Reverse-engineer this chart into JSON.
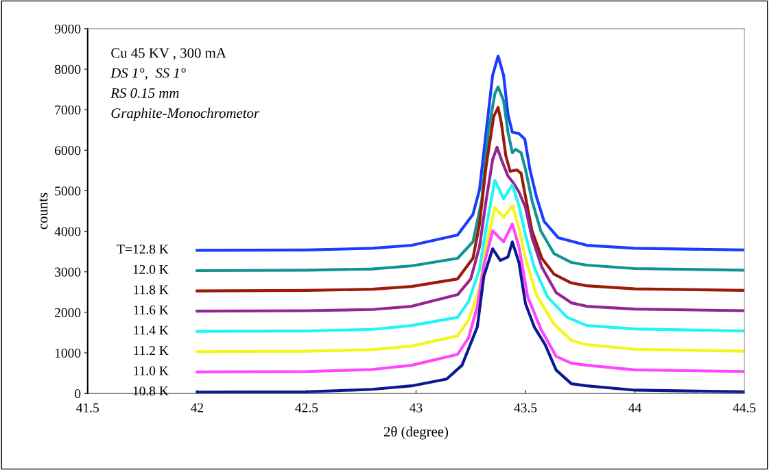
{
  "chart_data": {
    "type": "line",
    "xlabel": "2θ (degree)",
    "ylabel": "counts",
    "annotations": [
      "Cu 45 KV , 300 mA",
      "DS 1°,  SS 1°",
      "RS 0.15 mm",
      "Graphite-Monochrometor"
    ],
    "xlim": [
      41.5,
      44.5
    ],
    "xticks": [
      41.5,
      42,
      42.5,
      43,
      43.5,
      44,
      44.5
    ],
    "ylim": [
      0,
      9000
    ],
    "yticks": [
      0,
      1000,
      2000,
      3000,
      4000,
      5000,
      6000,
      7000,
      8000,
      9000
    ],
    "grid": false,
    "legend": false,
    "marker": "none",
    "line_style": "solid",
    "series": [
      {
        "name": "T=12.8 K",
        "color": "#1a3cff",
        "x": [
          42,
          42.5,
          42.8,
          42.98,
          43.19,
          43.26,
          43.29,
          43.32,
          43.35,
          43.375,
          43.4,
          43.42,
          43.44,
          43.47,
          43.497,
          43.52,
          43.55,
          43.585,
          43.65,
          43.78,
          44.0,
          44.5
        ],
        "values": [
          3530,
          3540,
          3580,
          3655,
          3908,
          4415,
          5025,
          6446,
          7850,
          8324,
          7850,
          6886,
          6446,
          6412,
          6277,
          5532,
          4855,
          4246,
          3840,
          3654,
          3580,
          3540
        ]
      },
      {
        "name": "12.0 K",
        "color": "#129393",
        "x": [
          42,
          42.5,
          42.8,
          42.98,
          43.19,
          43.26,
          43.3,
          43.33,
          43.36,
          43.375,
          43.4,
          43.42,
          43.44,
          43.455,
          43.48,
          43.5,
          43.53,
          43.57,
          43.63,
          43.71,
          43.78,
          44.0,
          44.5
        ],
        "values": [
          3030,
          3040,
          3070,
          3147,
          3333,
          3739,
          4754,
          6446,
          7393,
          7562,
          7224,
          6446,
          5938,
          6023,
          5938,
          5532,
          4754,
          4010,
          3451,
          3231,
          3164,
          3080,
          3040
        ]
      },
      {
        "name": "11.8 K",
        "color": "#9c1a06",
        "x": [
          42,
          42.5,
          42.8,
          42.98,
          43.19,
          43.26,
          43.29,
          43.32,
          43.355,
          43.375,
          43.39,
          43.41,
          43.43,
          43.46,
          43.48,
          43.5,
          43.53,
          43.575,
          43.63,
          43.71,
          43.78,
          44.0,
          44.5
        ],
        "values": [
          2530,
          2540,
          2570,
          2639,
          2825,
          3333,
          4179,
          5600,
          6835,
          7055,
          6666,
          5870,
          5481,
          5515,
          5430,
          4855,
          4010,
          3333,
          2944,
          2724,
          2656,
          2580,
          2540
        ]
      },
      {
        "name": "11.6 K",
        "color": "#952592",
        "x": [
          42,
          42.5,
          42.8,
          42.98,
          43.19,
          43.25,
          43.29,
          43.32,
          43.35,
          43.37,
          43.39,
          43.42,
          43.445,
          43.47,
          43.5,
          43.53,
          43.575,
          43.64,
          43.71,
          43.78,
          44.0,
          44.5
        ],
        "values": [
          2030,
          2040,
          2070,
          2149,
          2436,
          2825,
          3620,
          4754,
          5769,
          6074,
          5769,
          5363,
          5194,
          4974,
          4585,
          3840,
          3113,
          2487,
          2233,
          2149,
          2080,
          2040
        ]
      },
      {
        "name": "11.4 K",
        "color": "#1ff5f5",
        "x": [
          42,
          42.5,
          42.8,
          42.98,
          43.19,
          43.24,
          43.29,
          43.32,
          43.36,
          43.4,
          43.44,
          43.47,
          43.5,
          43.54,
          43.6,
          43.69,
          43.78,
          44.0,
          44.5
        ],
        "values": [
          1530,
          1540,
          1580,
          1675,
          1878,
          2267,
          3062,
          4077,
          5261,
          4804,
          5143,
          4636,
          3908,
          3113,
          2385,
          1878,
          1675,
          1590,
          1540
        ]
      },
      {
        "name": "11.2 K",
        "color": "#f5f51a",
        "x": [
          42,
          42.5,
          42.8,
          42.98,
          43.19,
          43.24,
          43.29,
          43.32,
          43.36,
          43.4,
          43.44,
          43.47,
          43.5,
          43.55,
          43.63,
          43.71,
          43.78,
          44.0,
          44.5
        ],
        "values": [
          1030,
          1040,
          1080,
          1167,
          1421,
          1810,
          2605,
          3620,
          4585,
          4348,
          4636,
          4077,
          3333,
          2436,
          1709,
          1303,
          1201,
          1090,
          1040
        ]
      },
      {
        "name": "11.0 K",
        "color": "#ff45ff",
        "x": [
          42,
          42.5,
          42.8,
          42.98,
          43.19,
          43.24,
          43.28,
          43.31,
          43.35,
          43.4,
          43.44,
          43.47,
          43.51,
          43.57,
          43.64,
          43.71,
          43.78,
          44.0,
          44.5
        ],
        "values": [
          530,
          540,
          590,
          694,
          964,
          1370,
          2149,
          3164,
          4010,
          3739,
          4179,
          3620,
          2385,
          1590,
          914,
          744,
          694,
          580,
          540
        ]
      },
      {
        "name": "10.8 K",
        "color": "#0a1990",
        "x": [
          42,
          42.5,
          42.8,
          42.98,
          43.14,
          43.21,
          43.28,
          43.31,
          43.35,
          43.385,
          43.42,
          43.44,
          43.47,
          43.5,
          43.54,
          43.59,
          43.64,
          43.71,
          43.78,
          44.0,
          44.5
        ],
        "values": [
          30,
          40,
          100,
          186,
          355,
          694,
          1641,
          2893,
          3570,
          3282,
          3367,
          3739,
          3231,
          2216,
          1641,
          1201,
          575,
          237,
          186,
          80,
          40
        ]
      }
    ]
  }
}
